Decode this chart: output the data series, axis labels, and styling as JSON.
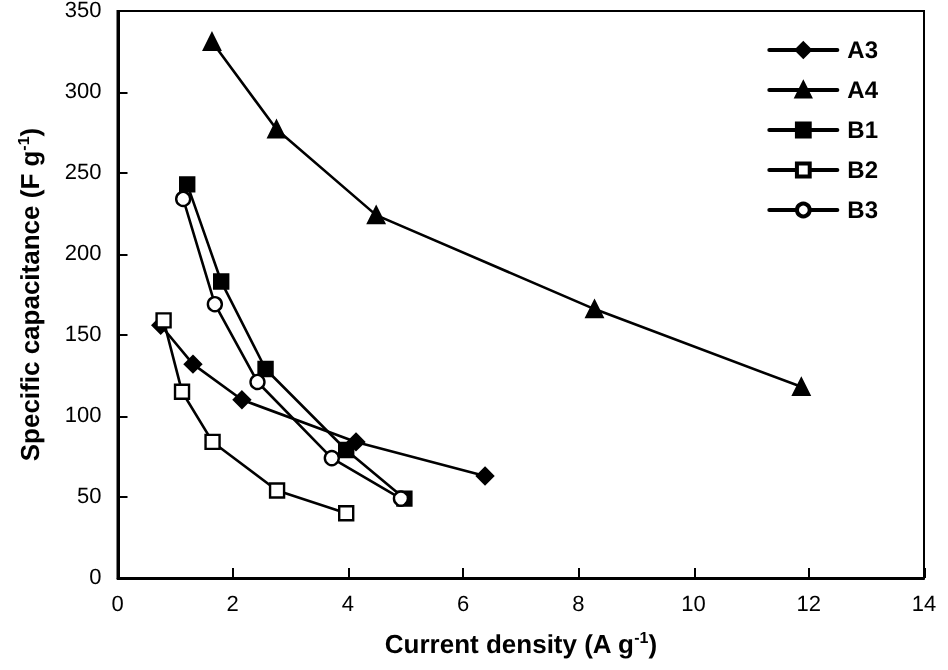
{
  "chart_data": {
    "type": "line",
    "xlabel": "Current density (A g$^{-1}$)",
    "ylabel": "Specific capacitance (F g$^{-1}$)",
    "xlim": [
      0,
      14
    ],
    "xticks": [
      0,
      2,
      4,
      6,
      8,
      10,
      12,
      14
    ],
    "ylim": [
      0,
      350
    ],
    "yticks": [
      0,
      50,
      100,
      150,
      200,
      250,
      300,
      350
    ],
    "grid": false,
    "legend": "top right",
    "series": [
      {
        "name": "A3",
        "color": "#000000",
        "marker": "diamond",
        "x": [
          0.75,
          1.31,
          2.16,
          4.14,
          6.38
        ],
        "values": [
          156,
          132,
          110,
          84,
          63
        ]
      },
      {
        "name": "A4",
        "color": "#000000",
        "marker": "triangle",
        "x": [
          1.64,
          2.76,
          4.49,
          8.28,
          11.87
        ],
        "values": [
          331,
          277,
          224,
          166,
          118
        ]
      },
      {
        "name": "B1",
        "color": "#000000",
        "marker": "square",
        "x": [
          1.21,
          1.8,
          2.57,
          3.97,
          4.98
        ],
        "values": [
          243,
          183,
          129,
          79,
          49
        ]
      },
      {
        "name": "B2",
        "color": "#000000",
        "marker": "square",
        "x": [
          0.8,
          1.12,
          1.65,
          2.77,
          3.97
        ],
        "values": [
          159,
          115,
          84,
          54,
          40
        ]
      },
      {
        "name": "B3",
        "color": "#000000",
        "marker": "circle",
        "x": [
          1.14,
          1.69,
          2.43,
          3.72,
          4.92
        ],
        "values": [
          234,
          169,
          121,
          74,
          49
        ]
      }
    ]
  }
}
